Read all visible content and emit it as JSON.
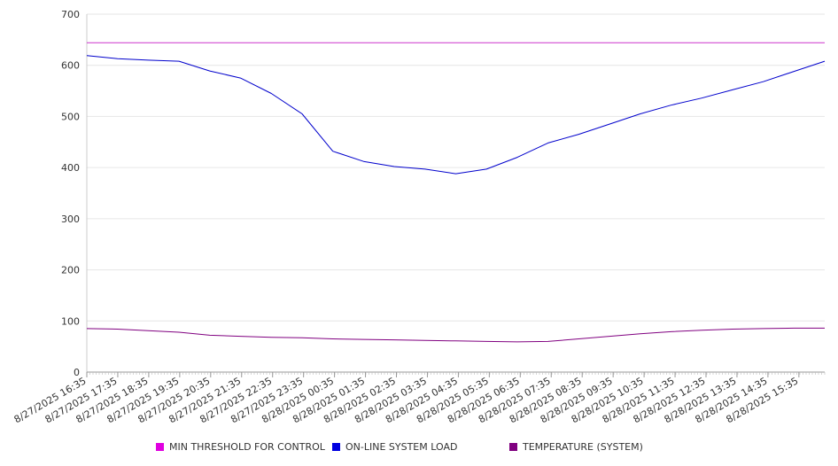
{
  "chart_data": {
    "type": "line",
    "title": "",
    "xlabel": "",
    "ylabel": "",
    "ylim": [
      0,
      700
    ],
    "yticks": [
      "0",
      "100",
      "200",
      "300",
      "400",
      "500",
      "600",
      "700"
    ],
    "grid": true,
    "legend_position": "bottom",
    "x_tick_labels": [
      "8/27/2025 16:35",
      "8/27/2025 17:35",
      "8/27/2025 18:35",
      "8/27/2025 19:35",
      "8/27/2025 20:35",
      "8/27/2025 21:35",
      "8/27/2025 22:35",
      "8/27/2025 23:35",
      "8/28/2025 00:35",
      "8/28/2025 01:35",
      "8/28/2025 02:35",
      "8/28/2025 03:35",
      "8/28/2025 04:35",
      "8/28/2025 05:35",
      "8/28/2025 06:35",
      "8/28/2025 07:35",
      "8/28/2025 08:35",
      "8/28/2025 09:35",
      "8/28/2025 10:35",
      "8/28/2025 11:35",
      "8/28/2025 12:35",
      "8/28/2025 13:35",
      "8/28/2025 14:35",
      "8/28/2025 15:35"
    ],
    "series": [
      {
        "name": "MIN THRESHOLD FOR CONTROL",
        "color": "#cc33cc",
        "values": [
          644,
          644,
          644,
          644,
          644,
          644,
          644,
          644,
          644,
          644,
          644,
          644,
          644,
          644,
          644,
          644,
          644,
          644,
          644,
          644,
          644,
          644,
          644,
          644,
          644
        ]
      },
      {
        "name": "ON-LINE SYSTEM LOAD",
        "color": "#0000cc",
        "values": [
          619,
          613,
          610,
          608,
          589,
          575,
          545,
          505,
          432,
          412,
          402,
          397,
          388,
          397,
          420,
          448,
          465,
          485,
          505,
          522,
          536,
          552,
          568,
          588,
          608
        ]
      },
      {
        "name": "TEMPERATURE (SYSTEM)",
        "color": "#800080",
        "values": [
          85,
          84,
          81,
          78,
          72,
          70,
          68,
          67,
          65,
          64,
          63,
          62,
          61,
          60,
          59,
          60,
          65,
          70,
          75,
          79,
          82,
          84,
          85,
          86,
          86
        ]
      }
    ]
  }
}
